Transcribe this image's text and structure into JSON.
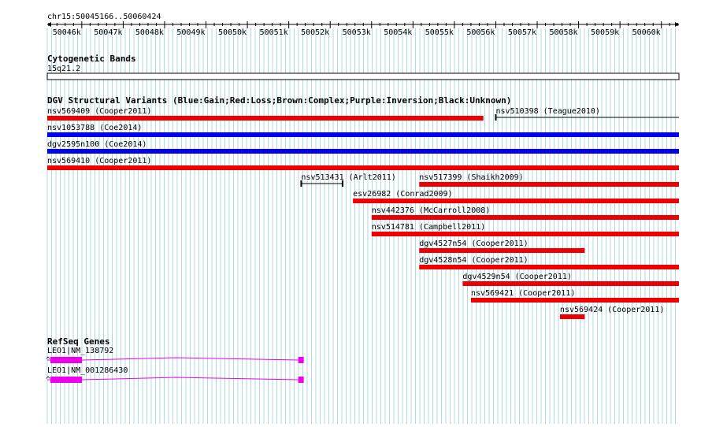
{
  "region": {
    "label": "chr15:50045166..50060424",
    "start": 50045166,
    "end": 50060424
  },
  "ruler": {
    "ticks": [
      "50046k",
      "50047k",
      "50048k",
      "50049k",
      "50050k",
      "50051k",
      "50052k",
      "50053k",
      "50054k",
      "50055k",
      "50056k",
      "50057k",
      "50058k",
      "50059k",
      "50060k"
    ]
  },
  "tracks": {
    "cytoband": {
      "title": "Cytogenetic Bands",
      "band": "15q21.2"
    },
    "dgv": {
      "title": "DGV Structural Variants (Blue:Gain;Red:Loss;Brown:Complex;Purple:Inversion;Black:Unknown)",
      "colors": {
        "gain": "#0000ee",
        "loss": "#ee0000",
        "unknown": "#000000"
      },
      "variants": [
        {
          "label": "nsv569409 (Cooper2011)",
          "type": "loss",
          "start": 50045166,
          "end": 50055700
        },
        {
          "label": "nsv510398 (Teague2010)",
          "type": "unknown",
          "start": 50056000,
          "end": 50060424
        },
        {
          "label": "nsv1053788 (Coe2014)",
          "type": "gain",
          "start": 50045166,
          "end": 50060424
        },
        {
          "label": "dgv2595n100 (Coe2014)",
          "type": "gain",
          "start": 50045166,
          "end": 50060424
        },
        {
          "label": "nsv569410 (Cooper2011)",
          "type": "loss",
          "start": 50045166,
          "end": 50060424
        },
        {
          "label": "nsv513431 (Arlt2011)",
          "type": "unknown",
          "start": 50051300,
          "end": 50052300
        },
        {
          "label": "nsv517399 (Shaikh2009)",
          "type": "loss",
          "start": 50054150,
          "end": 50060424
        },
        {
          "label": "esv26982 (Conrad2009)",
          "type": "loss",
          "start": 50052550,
          "end": 50060424
        },
        {
          "label": "nsv442376 (McCarroll2008)",
          "type": "loss",
          "start": 50053000,
          "end": 50060424
        },
        {
          "label": "nsv514781 (Campbell2011)",
          "type": "loss",
          "start": 50053000,
          "end": 50060424
        },
        {
          "label": "dgv4527n54 (Cooper2011)",
          "type": "loss",
          "start": 50054150,
          "end": 50058150
        },
        {
          "label": "dgv4528n54 (Cooper2011)",
          "type": "loss",
          "start": 50054150,
          "end": 50060424
        },
        {
          "label": "dgv4529n54 (Cooper2011)",
          "type": "loss",
          "start": 50055200,
          "end": 50060424
        },
        {
          "label": "nsv569421 (Cooper2011)",
          "type": "loss",
          "start": 50055400,
          "end": 50060424
        },
        {
          "label": "nsv569424 (Cooper2011)",
          "type": "loss",
          "start": 50057550,
          "end": 50058150
        }
      ]
    },
    "refseq": {
      "title": "RefSeq Genes",
      "color": "#ee00ee",
      "genes": [
        {
          "label": "LEO1|NM_138792",
          "start": 50045166,
          "end": 50051380
        },
        {
          "label": "LEO1|NM_001286430",
          "start": 50045166,
          "end": 50051380
        }
      ]
    }
  }
}
